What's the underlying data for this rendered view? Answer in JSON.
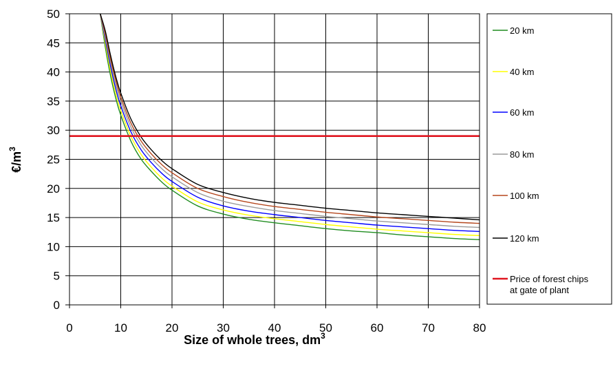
{
  "chart_data": {
    "type": "line",
    "xlabel": "Size of whole trees, dm",
    "xlabel_sup": "3",
    "ylabel": "€/m",
    "ylabel_sup": "3",
    "xlim": [
      0,
      80
    ],
    "ylim": [
      0,
      50
    ],
    "x_ticks": [
      "0",
      "10",
      "20",
      "30",
      "40",
      "50",
      "60",
      "70",
      "80"
    ],
    "y_ticks": [
      "0",
      "5",
      "10",
      "15",
      "20",
      "25",
      "30",
      "35",
      "40",
      "45",
      "50"
    ],
    "grid": true,
    "legend_position": "right",
    "x": [
      6,
      7,
      8,
      9,
      10,
      12,
      14,
      16,
      18,
      20,
      25,
      30,
      35,
      40,
      45,
      50,
      55,
      60,
      65,
      70,
      75,
      80
    ],
    "series": [
      {
        "name": "20 km",
        "color": "#1f8c1f",
        "values": [
          50,
          44.2,
          39.4,
          35.6,
          32.6,
          28.1,
          25.0,
          22.9,
          21.1,
          19.7,
          17.0,
          15.6,
          14.7,
          14.1,
          13.6,
          13.1,
          12.7,
          12.4,
          12.0,
          11.7,
          11.4,
          11.2
        ]
      },
      {
        "name": "40 km",
        "color": "#ffff00",
        "values": [
          50,
          44.9,
          40.2,
          36.4,
          33.4,
          28.9,
          25.8,
          23.6,
          21.8,
          20.4,
          17.7,
          16.3,
          15.4,
          14.8,
          14.3,
          13.8,
          13.4,
          13.0,
          12.7,
          12.4,
          12.1,
          11.9
        ]
      },
      {
        "name": "60 km",
        "color": "#0000ff",
        "values": [
          50,
          45.5,
          41.0,
          37.2,
          34.2,
          29.7,
          26.6,
          24.4,
          22.6,
          21.2,
          18.5,
          17.0,
          16.1,
          15.5,
          15.0,
          14.5,
          14.1,
          13.7,
          13.4,
          13.1,
          12.8,
          12.6
        ]
      },
      {
        "name": "80 km",
        "color": "#9a9a9a",
        "values": [
          50,
          46.0,
          41.7,
          38.0,
          35.0,
          30.5,
          27.4,
          25.2,
          23.4,
          22.0,
          19.3,
          17.8,
          16.9,
          16.2,
          15.7,
          15.2,
          14.8,
          14.4,
          14.1,
          13.8,
          13.5,
          13.3
        ]
      },
      {
        "name": "100 km",
        "color": "#b5471d",
        "values": [
          50,
          46.5,
          42.3,
          38.7,
          35.7,
          31.2,
          28.1,
          25.9,
          24.1,
          22.7,
          20.0,
          18.6,
          17.6,
          16.9,
          16.4,
          15.9,
          15.5,
          15.1,
          14.8,
          14.5,
          14.2,
          14.0
        ]
      },
      {
        "name": "120 km",
        "color": "#000000",
        "values": [
          50,
          47.0,
          42.9,
          39.3,
          36.4,
          31.9,
          28.8,
          26.6,
          24.8,
          23.4,
          20.7,
          19.3,
          18.3,
          17.6,
          17.1,
          16.6,
          16.2,
          15.8,
          15.5,
          15.2,
          14.9,
          14.6
        ]
      }
    ],
    "reference_line": {
      "name_line1": "Price of forest chips",
      "name_line2": "at gate of plant",
      "value": 29,
      "color": "#e0141e"
    }
  }
}
